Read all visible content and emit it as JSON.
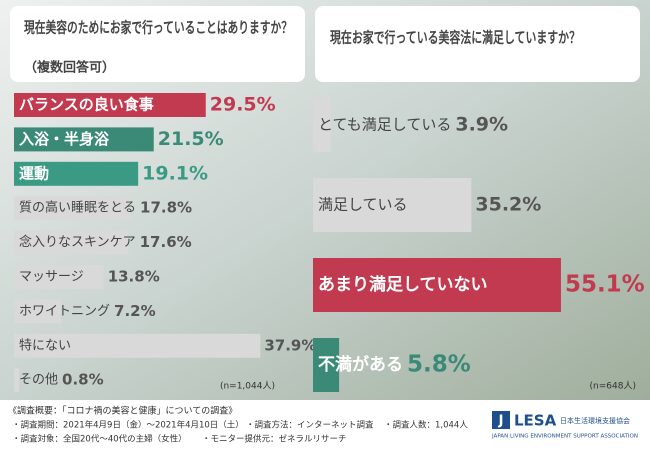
{
  "chart_data": [
    {
      "type": "bar",
      "orientation": "horizontal",
      "title": "現在美容のためにお家で行っていることはありますか？",
      "subtitle": "（複数回答可）",
      "note": "(n=1,044人)",
      "categories": [
        "バランスの良い食事",
        "入浴・半身浴",
        "運動",
        "質の高い睡眠をとる",
        "念入りなスキンケア",
        "マッサージ",
        "ホワイトニング",
        "特にない",
        "その他"
      ],
      "values": [
        29.5,
        21.5,
        19.1,
        17.8,
        17.6,
        13.8,
        7.2,
        37.9,
        0.8
      ],
      "value_labels": [
        "29.5%",
        "21.5%",
        "19.1%",
        "17.8%",
        "17.6%",
        "13.8%",
        "7.2%",
        "37.9%",
        "0.8%"
      ],
      "color": "#d9d9d9",
      "colors": [
        "#c23a4f",
        "#3b8a78",
        "#3b9a84",
        "#d9d9d9",
        "#d9d9d9",
        "#d9d9d9",
        "#d9d9d9",
        "#d9d9d9",
        "#d9d9d9"
      ]
    },
    {
      "type": "bar",
      "orientation": "horizontal",
      "title": "現在お家で行っている美容法に満足していますか？",
      "note": "(n=648人)",
      "categories": [
        "とても満足している",
        "満足している",
        "あまり満足していない",
        "不満がある"
      ],
      "values": [
        3.9,
        35.2,
        55.1,
        5.8
      ],
      "value_labels": [
        "3.9%",
        "35.2%",
        "55.1%",
        "5.8%"
      ],
      "color": "#d9d9d9",
      "colors": [
        "#d9d9d9",
        "#d9d9d9",
        "#c23a4f",
        "#3b8a78"
      ]
    }
  ],
  "footer": {
    "heading": "《調査概要：「コロナ禍の美容と健康」についての調査》",
    "items": [
      "・調査期間：2021年4月9日（金）〜2021年4月10日（土）",
      "・調査方法：インターネット調査",
      "・調査人数：1,044人",
      "・調査対象：全国20代〜40代の主婦（女性）",
      "・モニター提供元：ゼネラルリサーチ"
    ]
  },
  "logo": {
    "mark": "J",
    "name": "LESA",
    "jp": "日本生活環境支援協会",
    "en": "JAPAN LIVING ENVIRONMENT SUPPORT ASSOCIATION"
  }
}
